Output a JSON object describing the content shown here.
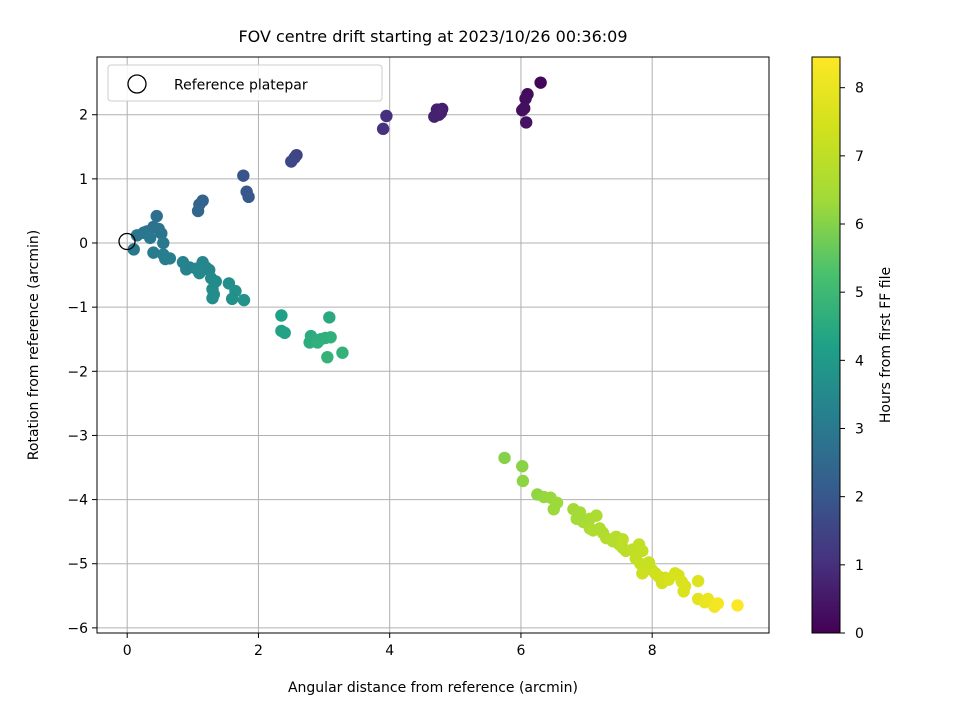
{
  "chart_data": {
    "type": "scatter",
    "title": "FOV centre drift starting at 2023/10/26 00:36:09",
    "xlabel": "Angular distance from reference (arcmin)",
    "ylabel": "Rotation from reference (arcmin)",
    "xlim": [
      -0.46,
      9.78
    ],
    "ylim": [
      -6.08,
      2.9
    ],
    "xticks": [
      "0",
      "2",
      "4",
      "6",
      "8"
    ],
    "yticks": [
      "−6",
      "−5",
      "−4",
      "−3",
      "−2",
      "−1",
      "0",
      "1",
      "2"
    ],
    "grid": true,
    "legend": {
      "placement": "top-left",
      "entries": [
        "Reference platepar"
      ]
    },
    "reference_point": {
      "x": 0,
      "y": 0
    },
    "colorbar": {
      "label": "Hours from first FF file",
      "range": [
        0,
        8.45
      ],
      "ticks": [
        "0",
        "1",
        "2",
        "3",
        "4",
        "5",
        "6",
        "7",
        "8"
      ],
      "colormap": "viridis"
    },
    "points": [
      {
        "x": 6.3,
        "y": 2.5,
        "h": 0.1
      },
      {
        "x": 6.1,
        "y": 2.32,
        "h": 0.2
      },
      {
        "x": 6.07,
        "y": 2.25,
        "h": 0.25
      },
      {
        "x": 6.05,
        "y": 2.1,
        "h": 0.3
      },
      {
        "x": 6.02,
        "y": 2.07,
        "h": 0.3
      },
      {
        "x": 6.08,
        "y": 1.88,
        "h": 0.35
      },
      {
        "x": 4.8,
        "y": 2.09,
        "h": 0.6
      },
      {
        "x": 4.72,
        "y": 2.08,
        "h": 0.65
      },
      {
        "x": 4.75,
        "y": 2.0,
        "h": 0.65
      },
      {
        "x": 4.68,
        "y": 1.97,
        "h": 0.7
      },
      {
        "x": 4.78,
        "y": 2.03,
        "h": 0.7
      },
      {
        "x": 3.95,
        "y": 1.98,
        "h": 1.0
      },
      {
        "x": 3.9,
        "y": 1.78,
        "h": 1.05
      },
      {
        "x": 2.58,
        "y": 1.37,
        "h": 1.5
      },
      {
        "x": 2.55,
        "y": 1.33,
        "h": 1.55
      },
      {
        "x": 2.5,
        "y": 1.27,
        "h": 1.6
      },
      {
        "x": 1.77,
        "y": 1.05,
        "h": 1.9
      },
      {
        "x": 1.82,
        "y": 0.8,
        "h": 2.0
      },
      {
        "x": 1.85,
        "y": 0.72,
        "h": 2.0
      },
      {
        "x": 1.15,
        "y": 0.66,
        "h": 2.3
      },
      {
        "x": 1.1,
        "y": 0.6,
        "h": 2.35
      },
      {
        "x": 1.08,
        "y": 0.5,
        "h": 2.4
      },
      {
        "x": 0.45,
        "y": 0.42,
        "h": 2.7
      },
      {
        "x": 0.4,
        "y": 0.25,
        "h": 2.75
      },
      {
        "x": 0.48,
        "y": 0.22,
        "h": 2.8
      },
      {
        "x": 0.52,
        "y": 0.15,
        "h": 2.8
      },
      {
        "x": 0.3,
        "y": 0.18,
        "h": 2.85
      },
      {
        "x": 0.25,
        "y": 0.16,
        "h": 2.9
      },
      {
        "x": 0.15,
        "y": 0.12,
        "h": 2.9
      },
      {
        "x": 0.35,
        "y": 0.08,
        "h": 2.95
      },
      {
        "x": 0.55,
        "y": 0.0,
        "h": 3.0
      },
      {
        "x": 0.1,
        "y": -0.1,
        "h": 3.0
      },
      {
        "x": 0.4,
        "y": -0.15,
        "h": 3.05
      },
      {
        "x": 0.55,
        "y": -0.18,
        "h": 3.1
      },
      {
        "x": 0.58,
        "y": -0.25,
        "h": 3.1
      },
      {
        "x": 0.65,
        "y": -0.24,
        "h": 3.15
      },
      {
        "x": 0.85,
        "y": -0.3,
        "h": 3.25
      },
      {
        "x": 0.95,
        "y": -0.38,
        "h": 3.3
      },
      {
        "x": 0.9,
        "y": -0.41,
        "h": 3.3
      },
      {
        "x": 1.05,
        "y": -0.4,
        "h": 3.35
      },
      {
        "x": 1.15,
        "y": -0.3,
        "h": 3.35
      },
      {
        "x": 1.2,
        "y": -0.38,
        "h": 3.4
      },
      {
        "x": 1.25,
        "y": -0.42,
        "h": 3.4
      },
      {
        "x": 1.1,
        "y": -0.47,
        "h": 3.45
      },
      {
        "x": 1.28,
        "y": -0.55,
        "h": 3.5
      },
      {
        "x": 1.35,
        "y": -0.6,
        "h": 3.55
      },
      {
        "x": 1.3,
        "y": -0.72,
        "h": 3.55
      },
      {
        "x": 1.32,
        "y": -0.8,
        "h": 3.6
      },
      {
        "x": 1.3,
        "y": -0.86,
        "h": 3.6
      },
      {
        "x": 1.55,
        "y": -0.63,
        "h": 3.65
      },
      {
        "x": 1.65,
        "y": -0.75,
        "h": 3.7
      },
      {
        "x": 1.6,
        "y": -0.87,
        "h": 3.7
      },
      {
        "x": 1.78,
        "y": -0.89,
        "h": 3.75
      },
      {
        "x": 2.35,
        "y": -1.13,
        "h": 4.2
      },
      {
        "x": 2.35,
        "y": -1.37,
        "h": 4.25
      },
      {
        "x": 2.4,
        "y": -1.4,
        "h": 4.3
      },
      {
        "x": 3.08,
        "y": -1.16,
        "h": 4.5
      },
      {
        "x": 2.8,
        "y": -1.45,
        "h": 4.55
      },
      {
        "x": 2.85,
        "y": -1.52,
        "h": 4.6
      },
      {
        "x": 2.95,
        "y": -1.5,
        "h": 4.6
      },
      {
        "x": 2.78,
        "y": -1.55,
        "h": 4.6
      },
      {
        "x": 2.9,
        "y": -1.55,
        "h": 4.65
      },
      {
        "x": 3.02,
        "y": -1.48,
        "h": 4.65
      },
      {
        "x": 3.1,
        "y": -1.47,
        "h": 4.7
      },
      {
        "x": 3.28,
        "y": -1.71,
        "h": 4.75
      },
      {
        "x": 3.05,
        "y": -1.78,
        "h": 4.8
      },
      {
        "x": 5.75,
        "y": -3.35,
        "h": 6.0
      },
      {
        "x": 6.02,
        "y": -3.48,
        "h": 6.05
      },
      {
        "x": 6.03,
        "y": -3.71,
        "h": 6.1
      },
      {
        "x": 6.25,
        "y": -3.92,
        "h": 6.15
      },
      {
        "x": 6.35,
        "y": -3.96,
        "h": 6.2
      },
      {
        "x": 6.45,
        "y": -3.97,
        "h": 6.25
      },
      {
        "x": 6.55,
        "y": -4.05,
        "h": 6.3
      },
      {
        "x": 6.5,
        "y": -4.15,
        "h": 6.3
      },
      {
        "x": 6.8,
        "y": -4.15,
        "h": 6.4
      },
      {
        "x": 6.9,
        "y": -4.2,
        "h": 6.45
      },
      {
        "x": 6.85,
        "y": -4.3,
        "h": 6.45
      },
      {
        "x": 6.95,
        "y": -4.35,
        "h": 6.5
      },
      {
        "x": 7.05,
        "y": -4.3,
        "h": 6.55
      },
      {
        "x": 7.05,
        "y": -4.45,
        "h": 6.6
      },
      {
        "x": 7.15,
        "y": -4.25,
        "h": 6.6
      },
      {
        "x": 7.1,
        "y": -4.48,
        "h": 6.65
      },
      {
        "x": 7.2,
        "y": -4.45,
        "h": 6.7
      },
      {
        "x": 7.25,
        "y": -4.52,
        "h": 6.7
      },
      {
        "x": 7.3,
        "y": -4.6,
        "h": 6.75
      },
      {
        "x": 7.4,
        "y": -4.65,
        "h": 6.8
      },
      {
        "x": 7.45,
        "y": -4.58,
        "h": 6.8
      },
      {
        "x": 7.5,
        "y": -4.7,
        "h": 6.85
      },
      {
        "x": 7.55,
        "y": -4.75,
        "h": 6.9
      },
      {
        "x": 7.6,
        "y": -4.8,
        "h": 6.95
      },
      {
        "x": 7.55,
        "y": -4.62,
        "h": 6.95
      },
      {
        "x": 7.7,
        "y": -4.78,
        "h": 7.0
      },
      {
        "x": 7.8,
        "y": -4.7,
        "h": 7.05
      },
      {
        "x": 7.85,
        "y": -4.8,
        "h": 7.1
      },
      {
        "x": 7.75,
        "y": -4.92,
        "h": 7.1
      },
      {
        "x": 7.82,
        "y": -5.0,
        "h": 7.15
      },
      {
        "x": 7.9,
        "y": -5.05,
        "h": 7.2
      },
      {
        "x": 7.95,
        "y": -4.98,
        "h": 7.2
      },
      {
        "x": 8.0,
        "y": -5.1,
        "h": 7.25
      },
      {
        "x": 7.85,
        "y": -5.15,
        "h": 7.3
      },
      {
        "x": 8.05,
        "y": -5.15,
        "h": 7.35
      },
      {
        "x": 8.1,
        "y": -5.2,
        "h": 7.4
      },
      {
        "x": 8.2,
        "y": -5.22,
        "h": 7.4
      },
      {
        "x": 8.15,
        "y": -5.3,
        "h": 7.45
      },
      {
        "x": 8.25,
        "y": -5.25,
        "h": 7.5
      },
      {
        "x": 8.35,
        "y": -5.15,
        "h": 7.55
      },
      {
        "x": 8.4,
        "y": -5.18,
        "h": 7.55
      },
      {
        "x": 8.45,
        "y": -5.28,
        "h": 7.6
      },
      {
        "x": 8.5,
        "y": -5.35,
        "h": 7.65
      },
      {
        "x": 8.48,
        "y": -5.43,
        "h": 7.65
      },
      {
        "x": 8.7,
        "y": -5.27,
        "h": 7.7
      },
      {
        "x": 8.7,
        "y": -5.55,
        "h": 7.85
      },
      {
        "x": 8.8,
        "y": -5.6,
        "h": 8.0
      },
      {
        "x": 8.85,
        "y": -5.55,
        "h": 8.05
      },
      {
        "x": 8.95,
        "y": -5.67,
        "h": 8.2
      },
      {
        "x": 9.0,
        "y": -5.62,
        "h": 8.25
      },
      {
        "x": 9.3,
        "y": -5.65,
        "h": 8.4
      }
    ]
  }
}
